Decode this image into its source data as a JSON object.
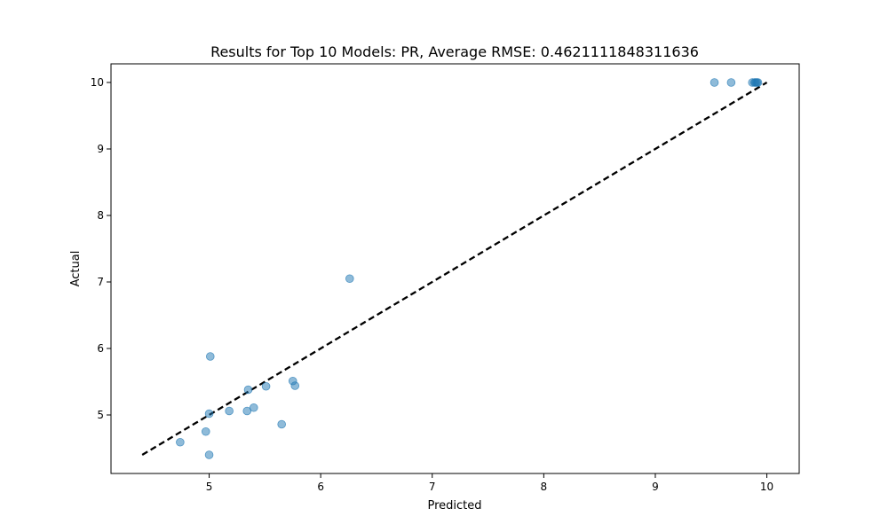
{
  "chart_data": {
    "type": "scatter",
    "title": "Results for Top 10 Models: PR, Average RMSE: 0.4621111848311636",
    "xlabel": "Predicted",
    "ylabel": "Actual",
    "xlim": [
      4.12,
      10.29
    ],
    "ylim": [
      4.12,
      10.28
    ],
    "x_ticks": [
      5,
      6,
      7,
      8,
      9,
      10
    ],
    "y_ticks": [
      5,
      6,
      7,
      8,
      9,
      10
    ],
    "grid": false,
    "legend": "none",
    "point_color": "#1f77b4",
    "line_color": "#000000",
    "series": [
      {
        "type": "scatter",
        "points": [
          {
            "x": 4.74,
            "y": 4.59
          },
          {
            "x": 4.97,
            "y": 4.75
          },
          {
            "x": 5.0,
            "y": 4.4
          },
          {
            "x": 5.0,
            "y": 5.02
          },
          {
            "x": 5.01,
            "y": 5.88
          },
          {
            "x": 5.18,
            "y": 5.06
          },
          {
            "x": 5.34,
            "y": 5.06
          },
          {
            "x": 5.35,
            "y": 5.38
          },
          {
            "x": 5.4,
            "y": 5.11
          },
          {
            "x": 5.51,
            "y": 5.43
          },
          {
            "x": 5.65,
            "y": 4.86
          },
          {
            "x": 5.75,
            "y": 5.51
          },
          {
            "x": 5.77,
            "y": 5.44
          },
          {
            "x": 6.26,
            "y": 7.05
          },
          {
            "x": 9.53,
            "y": 10.0
          },
          {
            "x": 9.68,
            "y": 10.0
          },
          {
            "x": 9.87,
            "y": 10.0
          },
          {
            "x": 9.89,
            "y": 10.0
          },
          {
            "x": 9.9,
            "y": 10.0
          },
          {
            "x": 9.91,
            "y": 10.0
          },
          {
            "x": 9.92,
            "y": 10.0
          }
        ]
      },
      {
        "type": "line",
        "style": "dashed",
        "points": [
          {
            "x": 4.4,
            "y": 4.4
          },
          {
            "x": 10.0,
            "y": 10.0
          }
        ]
      }
    ]
  }
}
